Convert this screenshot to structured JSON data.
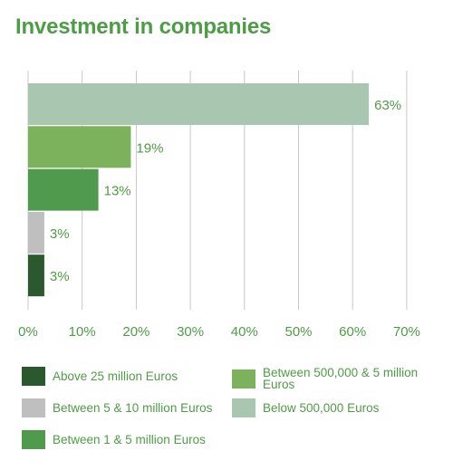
{
  "chart_data": {
    "type": "bar",
    "orientation": "horizontal",
    "title": "Investment in companies",
    "categories": [
      "Below 500,000 Euros",
      "Between 500,000 & 5 million Euros",
      "Between 1 & 5 million Euros",
      "Between 5 & 10 million Euros",
      "Above 25 million Euros"
    ],
    "values": [
      63,
      19,
      13,
      3,
      3
    ],
    "data_labels": [
      "63%",
      "19%",
      "13%",
      "3%",
      "3%"
    ],
    "colors": [
      "#a9c6b1",
      "#7cb25b",
      "#4f9a4d",
      "#bfbfbf",
      "#2b582c"
    ],
    "xlim": [
      0,
      70
    ],
    "x_ticks": [
      "0%",
      "10%",
      "20%",
      "30%",
      "40%",
      "50%",
      "60%",
      "70%"
    ],
    "grid": true,
    "legend_position": "bottom",
    "legend": [
      {
        "label": "Above 25 million Euros",
        "color": "#2b582c"
      },
      {
        "label": "Between 500,000 & 5 million Euros",
        "color": "#7cb25b"
      },
      {
        "label": "Between 5 & 10 million Euros",
        "color": "#bfbfbf"
      },
      {
        "label": "Below 500,000 Euros",
        "color": "#a9c6b1"
      },
      {
        "label": "Between 1 & 5 million Euros",
        "color": "#4f9a4d"
      }
    ]
  }
}
